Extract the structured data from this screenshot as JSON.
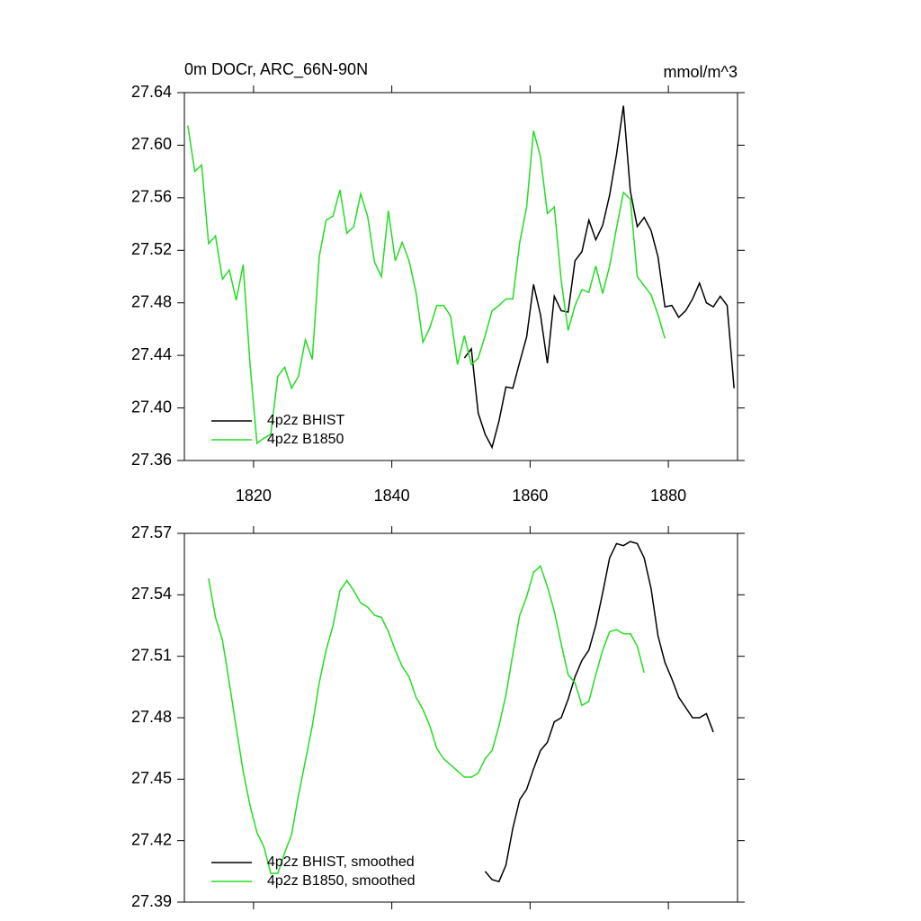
{
  "chart_data": [
    {
      "type": "line",
      "title": "0m DOCr, ARC_66N-90N",
      "units": "mmol/m^3",
      "xlim": [
        1810,
        1890
      ],
      "xticks": [
        1820,
        1840,
        1860,
        1880
      ],
      "xtick_labels": true,
      "ylim": [
        27.36,
        27.64
      ],
      "yticks": [
        27.36,
        {
          "value": 27.4,
          "label": "27.40"
        },
        27.44,
        27.48,
        27.52,
        27.56,
        {
          "value": 27.6,
          "label": "27.60"
        },
        27.64
      ],
      "legend": "lower left",
      "series": [
        {
          "name": "4p2z BHIST",
          "color": "#000000",
          "x": [
            1850.5,
            1851.5,
            1852.5,
            1853.5,
            1854.5,
            1855.5,
            1856.5,
            1857.5,
            1858.5,
            1859.5,
            1860.5,
            1861.5,
            1862.5,
            1863.5,
            1864.5,
            1865.5,
            1866.5,
            1867.5,
            1868.5,
            1869.5,
            1870.5,
            1871.5,
            1872.5,
            1873.5,
            1874.5,
            1875.5,
            1876.5,
            1877.5,
            1878.5,
            1879.5,
            1880.5,
            1881.5,
            1882.5,
            1883.5,
            1884.5,
            1885.5,
            1886.5,
            1887.5,
            1888.5,
            1889.5
          ],
          "values": [
            27.438,
            27.445,
            27.396,
            27.38,
            27.37,
            27.39,
            27.416,
            27.415,
            27.435,
            27.454,
            27.494,
            27.471,
            27.434,
            27.485,
            27.474,
            27.473,
            27.512,
            27.519,
            27.543,
            27.528,
            27.539,
            27.562,
            27.593,
            27.63,
            27.565,
            27.538,
            27.545,
            27.535,
            27.515,
            27.477,
            27.478,
            27.469,
            27.474,
            27.483,
            27.495,
            27.48,
            27.477,
            27.485,
            27.478,
            27.415
          ]
        },
        {
          "name": "4p2z B1850",
          "color": "#22dd22",
          "x": [
            1810.5,
            1811.5,
            1812.5,
            1813.5,
            1814.5,
            1815.5,
            1816.5,
            1817.5,
            1818.5,
            1819.5,
            1820.5,
            1821.5,
            1822.5,
            1823.5,
            1824.5,
            1825.5,
            1826.5,
            1827.5,
            1828.5,
            1829.5,
            1830.5,
            1831.5,
            1832.5,
            1833.5,
            1834.5,
            1835.5,
            1836.5,
            1837.5,
            1838.5,
            1839.5,
            1840.5,
            1841.5,
            1842.5,
            1843.5,
            1844.5,
            1845.5,
            1846.5,
            1847.5,
            1848.5,
            1849.5,
            1850.5,
            1851.5,
            1852.5,
            1853.5,
            1854.5,
            1855.5,
            1856.5,
            1857.5,
            1858.5,
            1859.5,
            1860.5,
            1861.5,
            1862.5,
            1863.5,
            1864.5,
            1865.5,
            1866.5,
            1867.5,
            1868.5,
            1869.5,
            1870.5,
            1871.5,
            1872.5,
            1873.5,
            1874.5,
            1875.5,
            1876.5,
            1877.5,
            1878.5,
            1879.5
          ],
          "values": [
            27.615,
            27.58,
            27.585,
            27.525,
            27.531,
            27.498,
            27.505,
            27.482,
            27.509,
            27.433,
            27.373,
            27.377,
            27.38,
            27.424,
            27.431,
            27.415,
            27.424,
            27.452,
            27.437,
            27.515,
            27.543,
            27.546,
            27.566,
            27.533,
            27.538,
            27.563,
            27.546,
            27.511,
            27.5,
            27.55,
            27.512,
            27.526,
            27.512,
            27.488,
            27.45,
            27.461,
            27.478,
            27.478,
            27.47,
            27.433,
            27.455,
            27.433,
            27.438,
            27.455,
            27.474,
            27.478,
            27.483,
            27.483,
            27.526,
            27.553,
            27.611,
            27.591,
            27.548,
            27.553,
            27.497,
            27.459,
            27.478,
            27.49,
            27.488,
            27.508,
            27.487,
            27.508,
            27.537,
            27.564,
            27.559,
            27.5,
            27.493,
            27.486,
            27.471,
            27.453
          ]
        }
      ]
    },
    {
      "type": "line",
      "xlim": [
        1810,
        1890
      ],
      "xticks": [
        1820,
        1840,
        1860,
        1880
      ],
      "xtick_labels": false,
      "ylim": [
        27.39,
        27.57
      ],
      "yticks": [
        27.39,
        27.42,
        27.45,
        27.48,
        27.51,
        27.54,
        27.57
      ],
      "legend": "lower left",
      "series": [
        {
          "name": "4p2z BHIST, smoothed",
          "color": "#000000",
          "x": [
            1853.5,
            1854.5,
            1855.5,
            1856.5,
            1857.5,
            1858.5,
            1859.5,
            1860.5,
            1861.5,
            1862.5,
            1863.5,
            1864.5,
            1865.5,
            1866.5,
            1867.5,
            1868.5,
            1869.5,
            1870.5,
            1871.5,
            1872.5,
            1873.5,
            1874.5,
            1875.5,
            1876.5,
            1877.5,
            1878.5,
            1879.5,
            1880.5,
            1881.5,
            1882.5,
            1883.5,
            1884.5,
            1885.5,
            1886.5
          ],
          "values": [
            27.405,
            27.401,
            27.4,
            27.408,
            27.426,
            27.44,
            27.445,
            27.455,
            27.464,
            27.468,
            27.478,
            27.48,
            27.489,
            27.5,
            27.508,
            27.513,
            27.525,
            27.541,
            27.558,
            27.565,
            27.564,
            27.566,
            27.565,
            27.558,
            27.543,
            27.52,
            27.507,
            27.499,
            27.49,
            27.485,
            27.48,
            27.48,
            27.482,
            27.473
          ]
        },
        {
          "name": "4p2z B1850, smoothed",
          "color": "#22dd22",
          "x": [
            1813.5,
            1814.5,
            1815.5,
            1816.5,
            1817.5,
            1818.5,
            1819.5,
            1820.5,
            1821.5,
            1822.5,
            1823.5,
            1824.5,
            1825.5,
            1826.5,
            1827.5,
            1828.5,
            1829.5,
            1830.5,
            1831.5,
            1832.5,
            1833.5,
            1834.5,
            1835.5,
            1836.5,
            1837.5,
            1838.5,
            1839.5,
            1840.5,
            1841.5,
            1842.5,
            1843.5,
            1844.5,
            1845.5,
            1846.5,
            1847.5,
            1848.5,
            1849.5,
            1850.5,
            1851.5,
            1852.5,
            1853.5,
            1854.5,
            1855.5,
            1856.5,
            1857.5,
            1858.5,
            1859.5,
            1860.5,
            1861.5,
            1862.5,
            1863.5,
            1864.5,
            1865.5,
            1866.5,
            1867.5,
            1868.5,
            1869.5,
            1870.5,
            1871.5,
            1872.5,
            1873.5,
            1874.5,
            1875.5,
            1876.5
          ],
          "values": [
            27.548,
            27.529,
            27.518,
            27.497,
            27.475,
            27.454,
            27.437,
            27.424,
            27.417,
            27.404,
            27.404,
            27.414,
            27.423,
            27.442,
            27.459,
            27.476,
            27.497,
            27.513,
            27.525,
            27.542,
            27.547,
            27.542,
            27.536,
            27.534,
            27.53,
            27.529,
            27.522,
            27.513,
            27.505,
            27.5,
            27.49,
            27.484,
            27.476,
            27.465,
            27.46,
            27.457,
            27.454,
            27.451,
            27.451,
            27.453,
            27.46,
            27.464,
            27.476,
            27.491,
            27.511,
            27.53,
            27.539,
            27.551,
            27.554,
            27.544,
            27.532,
            27.516,
            27.501,
            27.497,
            27.486,
            27.488,
            27.501,
            27.513,
            27.522,
            27.523,
            27.521,
            27.521,
            27.515,
            27.502
          ]
        }
      ]
    }
  ]
}
